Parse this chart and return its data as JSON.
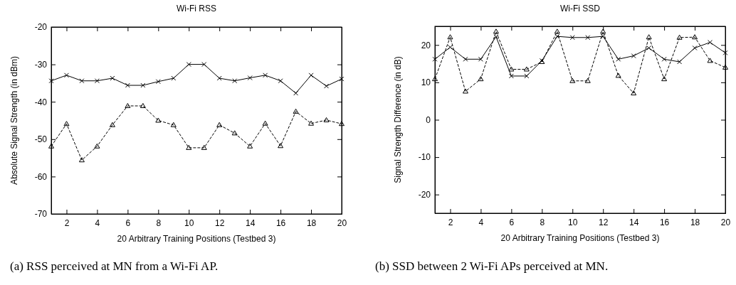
{
  "chart_data": [
    {
      "type": "line",
      "title": "Wi-Fi RSS",
      "xlabel": "20 Arbitrary Training Positions (Testbed 3)",
      "ylabel": "Absolute Signal Strength (in dBm)",
      "x": [
        1,
        2,
        3,
        4,
        5,
        6,
        7,
        8,
        9,
        10,
        11,
        12,
        13,
        14,
        15,
        16,
        17,
        18,
        19,
        20
      ],
      "series": [
        {
          "color": "#000000",
          "marker": "cross",
          "line_style": "solid",
          "values": [
            -34.4,
            -32.9,
            -34.4,
            -34.4,
            -33.7,
            -35.6,
            -35.6,
            -34.6,
            -33.7,
            -30,
            -30,
            -33.7,
            -34.4,
            -33.6,
            -32.9,
            -34.4,
            -37.7,
            -32.9,
            -35.8,
            -33.9
          ]
        },
        {
          "color": "#000000",
          "marker": "triangle",
          "line_style": "dashed",
          "values": [
            -51.9,
            -45.9,
            -55.6,
            -51.9,
            -46.2,
            -41.1,
            -41.1,
            -45,
            -46.2,
            -52.3,
            -52.3,
            -46.2,
            -48.4,
            -51.9,
            -45.8,
            -51.8,
            -42.6,
            -45.8,
            -44.9,
            -45.9
          ]
        }
      ],
      "xlim": [
        1,
        20
      ],
      "xticks": [
        2,
        4,
        6,
        8,
        10,
        12,
        14,
        16,
        18,
        20
      ],
      "ylim": [
        -70,
        -20
      ],
      "yticks": [
        -70,
        -60,
        -50,
        -40,
        -30,
        -20
      ],
      "grid": false,
      "annotations": [
        "(a)  RSS perceived at MN from a Wi-Fi AP."
      ]
    },
    {
      "type": "line",
      "title": "Wi-Fi SSD",
      "xlabel": "20 Arbitrary Training Positions (Testbed 3)",
      "ylabel": "Signal Strength Difference (in dB)",
      "x": [
        1,
        2,
        3,
        4,
        5,
        6,
        7,
        8,
        9,
        10,
        11,
        12,
        13,
        14,
        15,
        16,
        17,
        18,
        19,
        20
      ],
      "series": [
        {
          "color": "#000000",
          "marker": "cross",
          "line_style": "solid",
          "values": [
            16.2,
            19.4,
            16.2,
            16.2,
            22.2,
            11.7,
            11.7,
            15.8,
            22.3,
            22,
            22,
            22.3,
            16.2,
            17.1,
            19.2,
            16.2,
            15.5,
            19.2,
            20.7,
            17.9
          ]
        },
        {
          "color": "#000000",
          "marker": "triangle",
          "line_style": "dashed",
          "values": [
            10.9,
            22.1,
            7.6,
            10.9,
            23.6,
            13.5,
            13.5,
            15.5,
            23.6,
            10.4,
            10.4,
            23.6,
            11.8,
            7.1,
            22.1,
            10.9,
            22,
            22.1,
            15.8,
            14
          ]
        }
      ],
      "xlim": [
        1,
        20
      ],
      "xticks": [
        2,
        4,
        6,
        8,
        10,
        12,
        14,
        16,
        18,
        20
      ],
      "ylim": [
        -25,
        25
      ],
      "yticks": [
        -20,
        -10,
        0,
        10,
        20
      ],
      "grid": false,
      "annotations": [
        "(b)  SSD between 2 Wi-Fi APs perceived at MN."
      ]
    }
  ]
}
